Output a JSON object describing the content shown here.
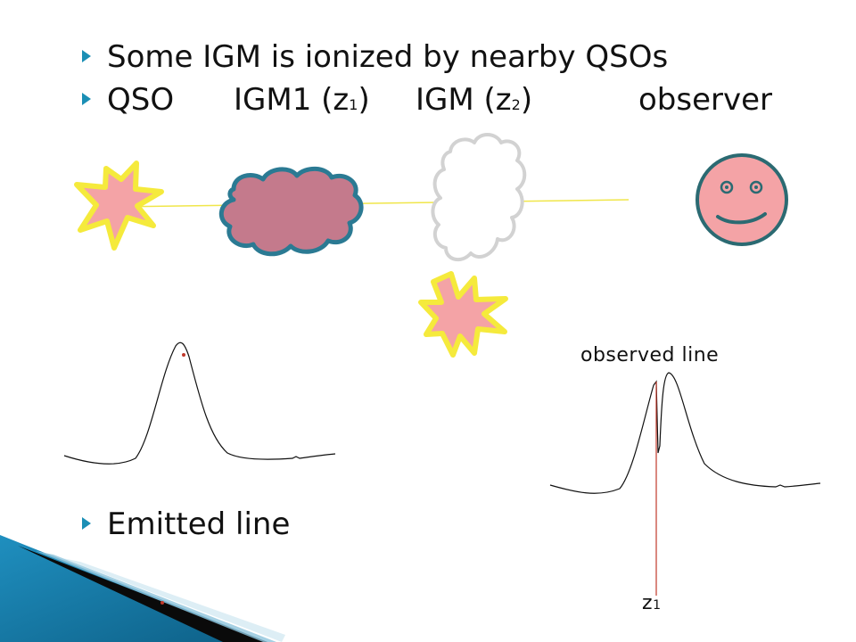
{
  "bullets": [
    {
      "id": "b1",
      "text": "Some IGM is ionized by nearby QSOs"
    },
    {
      "id": "b3",
      "text": "Emitted line"
    }
  ],
  "row2": {
    "qso": "QSO",
    "igm1": "IGM1 (z",
    "igm1_sub": "1",
    "igm2": "IGM (z",
    "igm2_sub": "2",
    "observer": "observer",
    "close": ")"
  },
  "labels": {
    "observed_line": "observed line",
    "z1": "z",
    "z1_sub": "1"
  },
  "colors": {
    "bullet": "#1b8fb5",
    "star_fill": "#f4a3a6",
    "star_stroke": "#f5ea3c",
    "cloud_fill": "#c47a8c",
    "cloud_stroke": "#2b7a93",
    "cloud_empty_stroke": "#d2d2d2",
    "face_fill": "#f4a3a6",
    "face_stroke": "#2b6a72",
    "sightline": "#f0e64a",
    "marker_line": "#c0392b"
  }
}
